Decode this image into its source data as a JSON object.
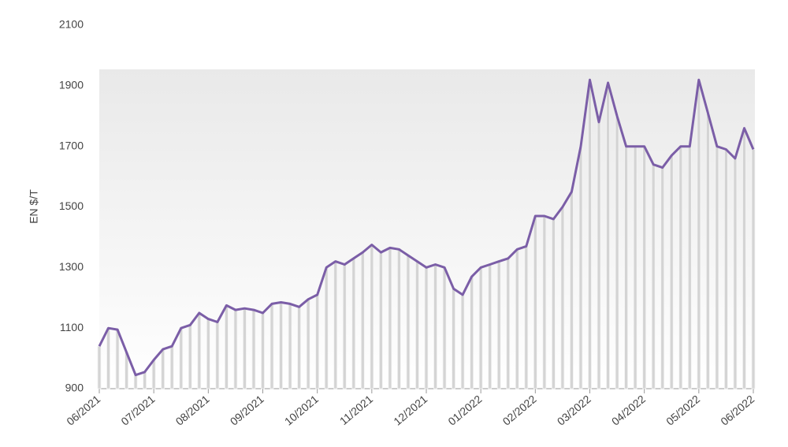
{
  "chart_data": {
    "type": "line",
    "y_label": "EN $/T",
    "categories": [
      "06/2021",
      null,
      null,
      null,
      null,
      null,
      "07/2021",
      null,
      null,
      null,
      null,
      null,
      "08/2021",
      null,
      null,
      null,
      null,
      null,
      "09/2021",
      null,
      null,
      null,
      null,
      null,
      "10/2021",
      null,
      null,
      null,
      null,
      null,
      "11/2021",
      null,
      null,
      null,
      null,
      null,
      "12/2021",
      null,
      null,
      null,
      null,
      null,
      "01/2022",
      null,
      null,
      null,
      null,
      null,
      "02/2022",
      null,
      null,
      null,
      null,
      null,
      "03/2022",
      null,
      null,
      null,
      null,
      null,
      "04/2022",
      null,
      null,
      null,
      null,
      null,
      "05/2022",
      null,
      null,
      null,
      null,
      null,
      "06/2022"
    ],
    "series": [
      {
        "color": "#7b5ea7",
        "values": [
          1040,
          1100,
          1095,
          1020,
          945,
          955,
          995,
          1030,
          1040,
          1100,
          1110,
          1150,
          1130,
          1120,
          1175,
          1160,
          1165,
          1160,
          1150,
          1180,
          1185,
          1180,
          1170,
          1195,
          1210,
          1300,
          1320,
          1310,
          1330,
          1350,
          1375,
          1350,
          1365,
          1360,
          1340,
          1320,
          1300,
          1310,
          1300,
          1230,
          1210,
          1270,
          1300,
          1310,
          1320,
          1330,
          1360,
          1370,
          1470,
          1470,
          1460,
          1500,
          1550,
          1700,
          1920,
          1780,
          1910,
          1800,
          1700,
          1700,
          1700,
          1640,
          1630,
          1670,
          1700,
          1700,
          1920,
          1810,
          1700,
          1690,
          1660,
          1760,
          1690
        ]
      }
    ],
    "ylim": [
      900,
      2100
    ],
    "yticks": [
      900,
      1100,
      1300,
      1500,
      1700,
      1900,
      2100
    ]
  }
}
